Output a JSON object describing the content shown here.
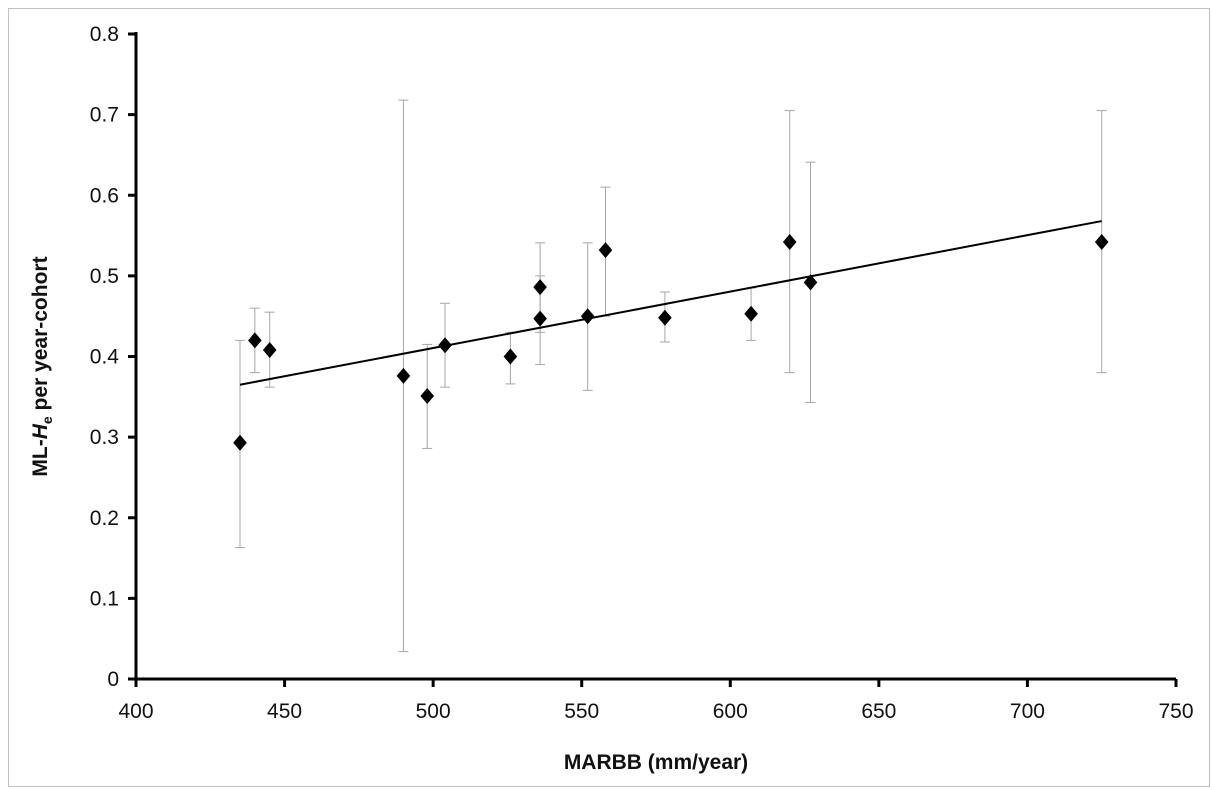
{
  "chart_data": {
    "type": "scatter",
    "title": "",
    "xlabel": "MARBB (mm/year)",
    "ylabel": {
      "prefix": "ML-",
      "italic": "H",
      "subscript": "e",
      "suffix": " per year-cohort"
    },
    "xlim": [
      400,
      750
    ],
    "ylim": [
      0,
      0.8
    ],
    "xticks": [
      400,
      450,
      500,
      550,
      600,
      650,
      700,
      750
    ],
    "yticks": [
      0,
      0.1,
      0.2,
      0.3,
      0.4,
      0.5,
      0.6,
      0.7,
      0.8
    ],
    "grid": false,
    "legend": "none",
    "marker": "diamond",
    "marker_color": "#000000",
    "errorbar_color": "#a6a6a6",
    "trendline_color": "#000000",
    "points": [
      {
        "x": 435,
        "y": 0.293,
        "err_low": 0.163,
        "err_high": 0.42
      },
      {
        "x": 440,
        "y": 0.42,
        "err_low": 0.38,
        "err_high": 0.46
      },
      {
        "x": 445,
        "y": 0.408,
        "err_low": 0.362,
        "err_high": 0.455
      },
      {
        "x": 490,
        "y": 0.376,
        "err_low": 0.034,
        "err_high": 0.718
      },
      {
        "x": 498,
        "y": 0.351,
        "err_low": 0.286,
        "err_high": 0.415
      },
      {
        "x": 504,
        "y": 0.414,
        "err_low": 0.362,
        "err_high": 0.466
      },
      {
        "x": 526,
        "y": 0.4,
        "err_low": 0.366,
        "err_high": 0.43
      },
      {
        "x": 536,
        "y": 0.447,
        "err_low": 0.39,
        "err_high": 0.5
      },
      {
        "x": 536,
        "y": 0.486,
        "err_low": 0.43,
        "err_high": 0.541
      },
      {
        "x": 552,
        "y": 0.45,
        "err_low": 0.358,
        "err_high": 0.541
      },
      {
        "x": 558,
        "y": 0.532,
        "err_low": 0.45,
        "err_high": 0.61
      },
      {
        "x": 578,
        "y": 0.448,
        "err_low": 0.418,
        "err_high": 0.48
      },
      {
        "x": 607,
        "y": 0.453,
        "err_low": 0.42,
        "err_high": 0.485
      },
      {
        "x": 620,
        "y": 0.542,
        "err_low": 0.38,
        "err_high": 0.705
      },
      {
        "x": 627,
        "y": 0.492,
        "err_low": 0.343,
        "err_high": 0.641
      },
      {
        "x": 725,
        "y": 0.542,
        "err_low": 0.38,
        "err_high": 0.705
      }
    ],
    "trendline": {
      "x": [
        435,
        725
      ],
      "y": [
        0.365,
        0.568
      ]
    }
  }
}
